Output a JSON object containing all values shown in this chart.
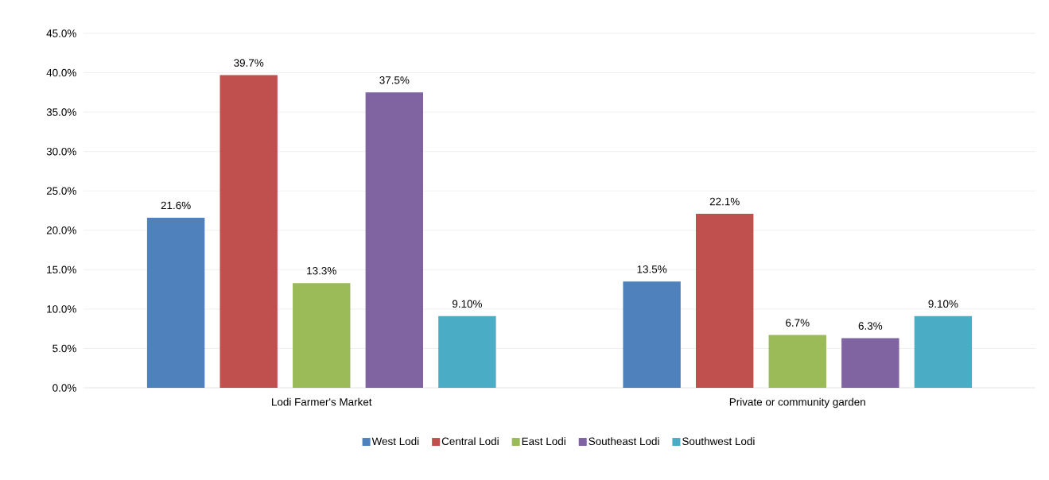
{
  "chart_data": {
    "type": "bar",
    "categories": [
      "Lodi Farmer's Market",
      "Private or community garden"
    ],
    "series": [
      {
        "name": "West Lodi",
        "color": "#4f81bd",
        "values": [
          21.6,
          13.5
        ],
        "value_labels": [
          "21.6%",
          "13.5%"
        ]
      },
      {
        "name": "Central Lodi",
        "color": "#c0504d",
        "values": [
          39.7,
          22.1
        ],
        "value_labels": [
          "39.7%",
          "22.1%"
        ]
      },
      {
        "name": "East Lodi",
        "color": "#9bbb59",
        "values": [
          13.3,
          6.7
        ],
        "value_labels": [
          "13.3%",
          "6.7%"
        ]
      },
      {
        "name": "Southeast Lodi",
        "color": "#8064a2",
        "values": [
          37.5,
          6.3
        ],
        "value_labels": [
          "37.5%",
          "6.3%"
        ]
      },
      {
        "name": "Southwest Lodi",
        "color": "#4bacc6",
        "values": [
          9.1,
          9.1
        ],
        "value_labels": [
          "9.10%",
          "9.10%"
        ]
      }
    ],
    "ylim": [
      0,
      45
    ],
    "yticks": [
      {
        "value": 0,
        "label": "0.0%"
      },
      {
        "value": 5,
        "label": "5.0%"
      },
      {
        "value": 10,
        "label": "10.0%"
      },
      {
        "value": 15,
        "label": "15.0%"
      },
      {
        "value": 20,
        "label": "20.0%"
      },
      {
        "value": 25,
        "label": "25.0%"
      },
      {
        "value": 30,
        "label": "30.0%"
      },
      {
        "value": 35,
        "label": "35.0%"
      },
      {
        "value": 40,
        "label": "40.0%"
      },
      {
        "value": 45,
        "label": "45.0%"
      }
    ],
    "grid": "y",
    "legend": "bottom"
  }
}
